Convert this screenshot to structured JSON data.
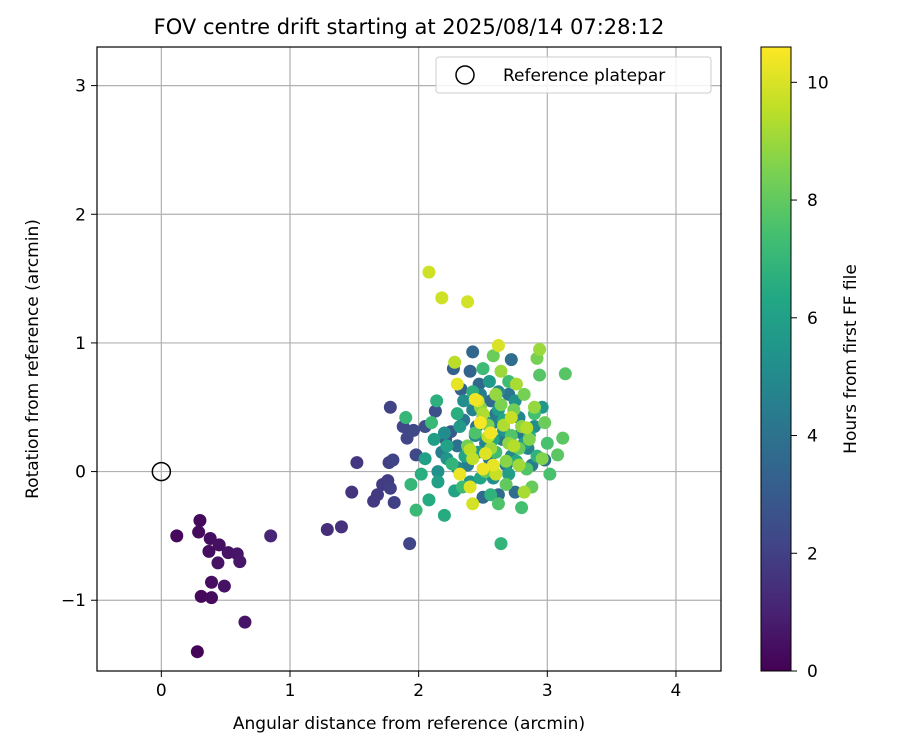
{
  "chart_data": {
    "type": "scatter",
    "title": "FOV centre drift starting at 2025/08/14 07:28:12",
    "xlabel": "Angular distance from reference (arcmin)",
    "ylabel": "Rotation from reference (arcmin)",
    "xlim": [
      -0.5,
      4.35
    ],
    "ylim": [
      -1.55,
      3.3
    ],
    "xticks": [
      0,
      1,
      2,
      3,
      4
    ],
    "yticks": [
      -1,
      0,
      1,
      2,
      3
    ],
    "xtick_labels": [
      "0",
      "1",
      "2",
      "3",
      "4"
    ],
    "ytick_labels": [
      "−1",
      "0",
      "1",
      "2",
      "3"
    ],
    "grid": true,
    "legend": {
      "label": "Reference platepar",
      "location": "top-right",
      "marker": "open-circle"
    },
    "reference_point": {
      "x": 0,
      "y": 0
    },
    "colorbar": {
      "label": "Hours from first FF file",
      "colormap": "viridis",
      "range": [
        0,
        10.6
      ],
      "ticks": [
        0,
        2,
        4,
        6,
        8,
        10
      ],
      "tick_labels": [
        "0",
        "2",
        "4",
        "6",
        "8",
        "10"
      ]
    },
    "points": [
      {
        "x": 0.28,
        "y": -1.4,
        "c": 0.1
      },
      {
        "x": 0.31,
        "y": -0.97,
        "c": 0.2
      },
      {
        "x": 0.39,
        "y": -0.98,
        "c": 0.3
      },
      {
        "x": 0.39,
        "y": -0.86,
        "c": 0.4
      },
      {
        "x": 0.49,
        "y": -0.89,
        "c": 0.5
      },
      {
        "x": 0.65,
        "y": -1.17,
        "c": 0.6
      },
      {
        "x": 0.12,
        "y": -0.5,
        "c": 0.2
      },
      {
        "x": 0.29,
        "y": -0.47,
        "c": 0.3
      },
      {
        "x": 0.3,
        "y": -0.38,
        "c": 0.25
      },
      {
        "x": 0.38,
        "y": -0.52,
        "c": 0.35
      },
      {
        "x": 0.37,
        "y": -0.62,
        "c": 0.4
      },
      {
        "x": 0.45,
        "y": -0.57,
        "c": 0.45
      },
      {
        "x": 0.44,
        "y": -0.71,
        "c": 0.5
      },
      {
        "x": 0.52,
        "y": -0.63,
        "c": 0.55
      },
      {
        "x": 0.59,
        "y": -0.64,
        "c": 0.6
      },
      {
        "x": 0.61,
        "y": -0.7,
        "c": 0.65
      },
      {
        "x": 0.85,
        "y": -0.5,
        "c": 1.1
      },
      {
        "x": 1.29,
        "y": -0.45,
        "c": 1.4
      },
      {
        "x": 1.4,
        "y": -0.43,
        "c": 1.5
      },
      {
        "x": 1.48,
        "y": -0.16,
        "c": 1.6
      },
      {
        "x": 1.52,
        "y": 0.07,
        "c": 1.7
      },
      {
        "x": 1.65,
        "y": -0.23,
        "c": 1.8
      },
      {
        "x": 1.68,
        "y": -0.18,
        "c": 1.8
      },
      {
        "x": 1.72,
        "y": -0.1,
        "c": 1.9
      },
      {
        "x": 1.76,
        "y": -0.07,
        "c": 1.9
      },
      {
        "x": 1.78,
        "y": -0.13,
        "c": 2.0
      },
      {
        "x": 1.81,
        "y": -0.24,
        "c": 2.0
      },
      {
        "x": 1.77,
        "y": 0.07,
        "c": 2.0
      },
      {
        "x": 1.8,
        "y": 0.09,
        "c": 2.1
      },
      {
        "x": 1.78,
        "y": 0.5,
        "c": 2.1
      },
      {
        "x": 1.88,
        "y": 0.35,
        "c": 2.2
      },
      {
        "x": 1.91,
        "y": 0.26,
        "c": 2.2
      },
      {
        "x": 1.93,
        "y": -0.56,
        "c": 2.2
      },
      {
        "x": 1.96,
        "y": 0.32,
        "c": 2.3
      },
      {
        "x": 1.98,
        "y": 0.13,
        "c": 2.3
      },
      {
        "x": 2.05,
        "y": 0.35,
        "c": 2.5
      },
      {
        "x": 2.13,
        "y": 0.47,
        "c": 2.6
      },
      {
        "x": 2.21,
        "y": 0.25,
        "c": 2.8
      },
      {
        "x": 2.25,
        "y": 0.31,
        "c": 3.0
      },
      {
        "x": 2.27,
        "y": 0.8,
        "c": 3.2
      },
      {
        "x": 2.33,
        "y": 0.64,
        "c": 3.3
      },
      {
        "x": 2.4,
        "y": 0.78,
        "c": 3.4
      },
      {
        "x": 2.42,
        "y": 0.93,
        "c": 3.5
      },
      {
        "x": 2.47,
        "y": 0.68,
        "c": 3.6
      },
      {
        "x": 2.5,
        "y": -0.2,
        "c": 3.6
      },
      {
        "x": 2.56,
        "y": 0.55,
        "c": 3.7
      },
      {
        "x": 2.62,
        "y": -0.18,
        "c": 3.7
      },
      {
        "x": 2.72,
        "y": 0.87,
        "c": 3.8
      },
      {
        "x": 2.75,
        "y": -0.16,
        "c": 3.8
      },
      {
        "x": 2.98,
        "y": 0.09,
        "c": 3.9
      },
      {
        "x": 2.3,
        "y": 0.2,
        "c": 4.0
      },
      {
        "x": 2.45,
        "y": 0.35,
        "c": 4.0
      },
      {
        "x": 2.6,
        "y": 0.45,
        "c": 4.1
      },
      {
        "x": 2.7,
        "y": 0.6,
        "c": 4.1
      },
      {
        "x": 2.35,
        "y": 0.4,
        "c": 4.2
      },
      {
        "x": 2.55,
        "y": 0.1,
        "c": 4.2
      },
      {
        "x": 2.65,
        "y": 0.25,
        "c": 4.3
      },
      {
        "x": 2.8,
        "y": 0.3,
        "c": 4.3
      },
      {
        "x": 2.88,
        "y": 0.05,
        "c": 4.4
      },
      {
        "x": 2.48,
        "y": 0.6,
        "c": 4.4
      },
      {
        "x": 2.38,
        "y": 0.05,
        "c": 4.5
      },
      {
        "x": 2.18,
        "y": 0.15,
        "c": 4.5
      },
      {
        "x": 2.58,
        "y": 0.38,
        "c": 4.6
      },
      {
        "x": 2.68,
        "y": 0.05,
        "c": 4.6
      },
      {
        "x": 2.42,
        "y": 0.48,
        "c": 4.7
      },
      {
        "x": 2.52,
        "y": 0.22,
        "c": 4.7
      },
      {
        "x": 2.78,
        "y": 0.42,
        "c": 4.8
      },
      {
        "x": 2.85,
        "y": 0.18,
        "c": 4.8
      },
      {
        "x": 2.3,
        "y": 0.03,
        "c": 4.9
      },
      {
        "x": 2.62,
        "y": 0.62,
        "c": 4.9
      },
      {
        "x": 2.72,
        "y": 0.12,
        "c": 5.0
      },
      {
        "x": 2.44,
        "y": 0.28,
        "c": 5.0
      },
      {
        "x": 2.2,
        "y": 0.3,
        "c": 5.1
      },
      {
        "x": 2.9,
        "y": 0.35,
        "c": 5.1
      },
      {
        "x": 2.58,
        "y": -0.05,
        "c": 5.2
      },
      {
        "x": 2.35,
        "y": 0.55,
        "c": 5.2
      },
      {
        "x": 2.15,
        "y": 0.0,
        "c": 5.3
      },
      {
        "x": 2.75,
        "y": 0.55,
        "c": 5.3
      },
      {
        "x": 2.5,
        "y": 0.42,
        "c": 5.4
      },
      {
        "x": 2.66,
        "y": 0.32,
        "c": 5.4
      },
      {
        "x": 2.22,
        "y": 0.1,
        "c": 5.5
      },
      {
        "x": 2.4,
        "y": -0.08,
        "c": 5.5
      },
      {
        "x": 2.82,
        "y": 0.22,
        "c": 5.6
      },
      {
        "x": 2.96,
        "y": 0.5,
        "c": 5.6
      },
      {
        "x": 2.55,
        "y": 0.7,
        "c": 5.7
      },
      {
        "x": 2.32,
        "y": 0.35,
        "c": 5.7
      },
      {
        "x": 2.46,
        "y": 0.15,
        "c": 5.8
      },
      {
        "x": 2.62,
        "y": 0.48,
        "c": 5.8
      },
      {
        "x": 2.12,
        "y": 0.25,
        "c": 5.9
      },
      {
        "x": 2.7,
        "y": -0.02,
        "c": 5.9
      },
      {
        "x": 2.05,
        "y": 0.1,
        "c": 6.0
      },
      {
        "x": 2.15,
        "y": -0.08,
        "c": 6.0
      },
      {
        "x": 2.22,
        "y": 0.2,
        "c": 6.1
      },
      {
        "x": 2.28,
        "y": -0.15,
        "c": 6.1
      },
      {
        "x": 2.36,
        "y": 0.12,
        "c": 6.2
      },
      {
        "x": 2.48,
        "y": -0.05,
        "c": 6.2
      },
      {
        "x": 2.58,
        "y": 0.25,
        "c": 6.3
      },
      {
        "x": 2.66,
        "y": 0.4,
        "c": 6.3
      },
      {
        "x": 2.76,
        "y": 0.08,
        "c": 6.4
      },
      {
        "x": 2.86,
        "y": 0.28,
        "c": 6.4
      },
      {
        "x": 2.2,
        "y": -0.34,
        "c": 6.5
      },
      {
        "x": 2.08,
        "y": -0.22,
        "c": 6.5
      },
      {
        "x": 2.02,
        "y": -0.02,
        "c": 6.6
      },
      {
        "x": 2.3,
        "y": 0.45,
        "c": 6.6
      },
      {
        "x": 2.42,
        "y": 0.62,
        "c": 6.7
      },
      {
        "x": 2.14,
        "y": 0.55,
        "c": 6.7
      },
      {
        "x": 2.56,
        "y": -0.18,
        "c": 6.8
      },
      {
        "x": 2.92,
        "y": 0.12,
        "c": 6.8
      },
      {
        "x": 2.64,
        "y": -0.56,
        "c": 6.9
      },
      {
        "x": 2.26,
        "y": 0.06,
        "c": 6.9
      },
      {
        "x": 1.9,
        "y": 0.42,
        "c": 7.0
      },
      {
        "x": 1.94,
        "y": -0.1,
        "c": 7.0
      },
      {
        "x": 1.98,
        "y": -0.3,
        "c": 7.1
      },
      {
        "x": 2.1,
        "y": 0.38,
        "c": 7.1
      },
      {
        "x": 2.34,
        "y": -0.12,
        "c": 7.2
      },
      {
        "x": 2.5,
        "y": 0.8,
        "c": 7.2
      },
      {
        "x": 2.6,
        "y": 0.15,
        "c": 7.3
      },
      {
        "x": 2.7,
        "y": 0.7,
        "c": 7.3
      },
      {
        "x": 2.8,
        "y": -0.28,
        "c": 7.4
      },
      {
        "x": 2.9,
        "y": 0.45,
        "c": 7.4
      },
      {
        "x": 3.0,
        "y": 0.22,
        "c": 7.5
      },
      {
        "x": 3.02,
        "y": -0.02,
        "c": 7.5
      },
      {
        "x": 2.62,
        "y": -0.25,
        "c": 7.6
      },
      {
        "x": 2.44,
        "y": 0.3,
        "c": 7.6
      },
      {
        "x": 2.72,
        "y": 0.28,
        "c": 7.7
      },
      {
        "x": 2.84,
        "y": 0.02,
        "c": 7.7
      },
      {
        "x": 2.94,
        "y": 0.75,
        "c": 7.8
      },
      {
        "x": 3.14,
        "y": 0.76,
        "c": 7.8
      },
      {
        "x": 3.08,
        "y": 0.13,
        "c": 7.9
      },
      {
        "x": 3.12,
        "y": 0.26,
        "c": 7.9
      },
      {
        "x": 2.52,
        "y": 0.0,
        "c": 8.0
      },
      {
        "x": 2.68,
        "y": -0.1,
        "c": 8.0
      },
      {
        "x": 2.78,
        "y": 0.18,
        "c": 8.1
      },
      {
        "x": 2.88,
        "y": -0.12,
        "c": 8.1
      },
      {
        "x": 2.98,
        "y": 0.38,
        "c": 8.2
      },
      {
        "x": 2.58,
        "y": 0.9,
        "c": 8.2
      },
      {
        "x": 2.38,
        "y": 0.2,
        "c": 8.3
      },
      {
        "x": 2.74,
        "y": 0.48,
        "c": 8.3
      },
      {
        "x": 2.82,
        "y": 0.6,
        "c": 8.4
      },
      {
        "x": 2.92,
        "y": 0.88,
        "c": 8.4
      },
      {
        "x": 2.64,
        "y": 0.52,
        "c": 8.5
      },
      {
        "x": 2.54,
        "y": 0.36,
        "c": 8.5
      },
      {
        "x": 2.86,
        "y": 0.25,
        "c": 8.6
      },
      {
        "x": 2.96,
        "y": 0.1,
        "c": 8.6
      },
      {
        "x": 2.68,
        "y": 0.08,
        "c": 8.7
      },
      {
        "x": 2.48,
        "y": 0.5,
        "c": 8.7
      },
      {
        "x": 2.7,
        "y": 0.22,
        "c": 8.8
      },
      {
        "x": 2.8,
        "y": 0.35,
        "c": 8.8
      },
      {
        "x": 2.6,
        "y": 0.6,
        "c": 8.9
      },
      {
        "x": 2.9,
        "y": 0.5,
        "c": 8.9
      },
      {
        "x": 2.94,
        "y": 0.95,
        "c": 9.0
      },
      {
        "x": 2.64,
        "y": 0.78,
        "c": 9.0
      },
      {
        "x": 2.78,
        "y": 0.05,
        "c": 9.1
      },
      {
        "x": 2.56,
        "y": 0.18,
        "c": 9.1
      },
      {
        "x": 2.76,
        "y": 0.68,
        "c": 9.2
      },
      {
        "x": 2.82,
        "y": -0.16,
        "c": 9.2
      },
      {
        "x": 2.5,
        "y": 0.45,
        "c": 9.3
      },
      {
        "x": 2.66,
        "y": 0.36,
        "c": 9.3
      },
      {
        "x": 2.74,
        "y": 0.2,
        "c": 9.4
      },
      {
        "x": 2.84,
        "y": 0.34,
        "c": 9.4
      },
      {
        "x": 2.4,
        "y": 0.17,
        "c": 9.5
      },
      {
        "x": 2.28,
        "y": 0.85,
        "c": 9.5
      },
      {
        "x": 2.42,
        "y": 0.1,
        "c": 9.6
      },
      {
        "x": 2.54,
        "y": 0.27,
        "c": 9.6
      },
      {
        "x": 2.6,
        "y": -0.02,
        "c": 9.7
      },
      {
        "x": 2.72,
        "y": 0.42,
        "c": 9.7
      },
      {
        "x": 2.08,
        "y": 1.55,
        "c": 9.8
      },
      {
        "x": 2.18,
        "y": 1.35,
        "c": 9.8
      },
      {
        "x": 2.38,
        "y": 1.32,
        "c": 9.9
      },
      {
        "x": 2.42,
        "y": -0.25,
        "c": 9.9
      },
      {
        "x": 2.46,
        "y": 0.55,
        "c": 10.0
      },
      {
        "x": 2.62,
        "y": 0.98,
        "c": 10.0
      },
      {
        "x": 2.52,
        "y": 0.14,
        "c": 10.1
      },
      {
        "x": 2.4,
        "y": -0.12,
        "c": 10.1
      },
      {
        "x": 2.3,
        "y": 0.68,
        "c": 10.2
      },
      {
        "x": 2.58,
        "y": 0.05,
        "c": 10.2
      },
      {
        "x": 2.32,
        "y": -0.02,
        "c": 10.3
      },
      {
        "x": 2.5,
        "y": 0.02,
        "c": 10.3
      },
      {
        "x": 2.44,
        "y": 0.56,
        "c": 10.4
      },
      {
        "x": 2.56,
        "y": 0.3,
        "c": 10.4
      },
      {
        "x": 2.48,
        "y": 0.38,
        "c": 10.5
      }
    ]
  }
}
